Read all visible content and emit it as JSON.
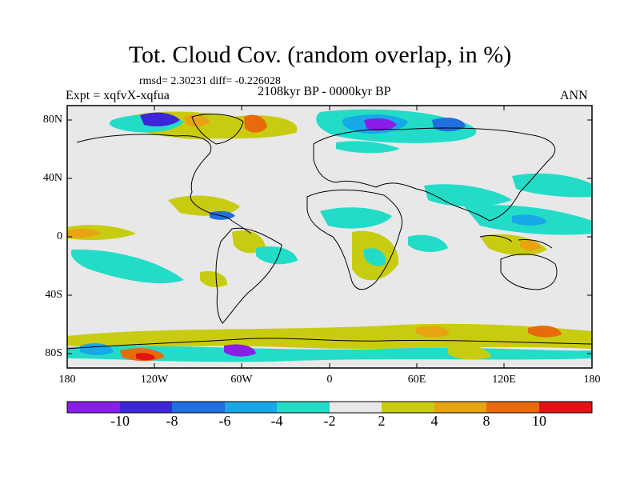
{
  "header": {
    "title": "Tot. Cloud Cov. (random overlap, in %)",
    "stats": "rmsd= 2.30231  diff= -0.226028",
    "experiment": "Expt = xqfvX-xqfua",
    "period": "2108kyr BP - 0000kyr BP",
    "season": "ANN"
  },
  "axes": {
    "y_ticks": [
      "80N",
      "40N",
      "0",
      "40S",
      "80S"
    ],
    "x_ticks": [
      "180",
      "120W",
      "60W",
      "0",
      "60E",
      "120E",
      "180"
    ]
  },
  "colorbar": {
    "labels": [
      "-10",
      "-8",
      "-6",
      "-4",
      "-2",
      "2",
      "4",
      "8",
      "10"
    ],
    "colors": [
      "#8a1ee8",
      "#3d26d8",
      "#1f6fe0",
      "#17a8e8",
      "#22dcc8",
      "#e8e8e8",
      "#c8cc10",
      "#e8a410",
      "#e86a0a",
      "#e31212"
    ]
  },
  "colors": {
    "neutral": "#e8e8e8",
    "coastline": "#000000"
  }
}
